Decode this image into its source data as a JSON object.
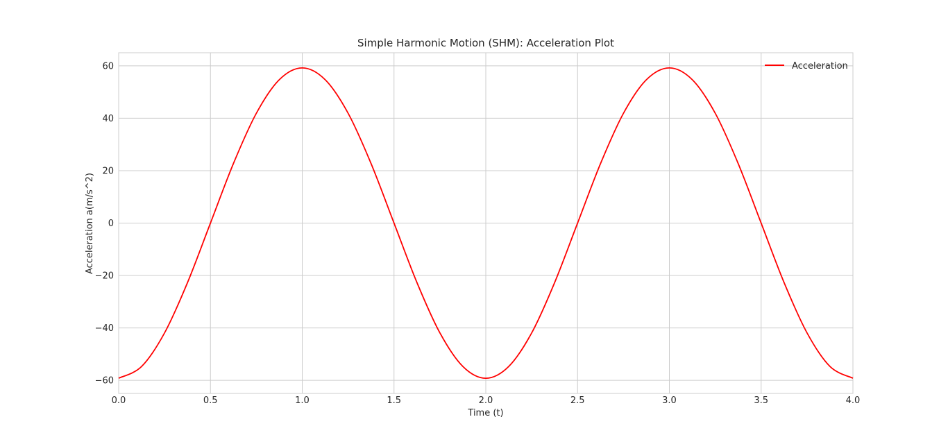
{
  "chart_data": {
    "type": "line",
    "title": "Simple Harmonic Motion (SHM): Acceleration Plot",
    "xlabel": "Time (t)",
    "ylabel": "Acceleration a(m/s^2)",
    "xlim": [
      0,
      4
    ],
    "ylim": [
      -65,
      65
    ],
    "x_ticks": [
      "0.0",
      "0.5",
      "1.0",
      "1.5",
      "2.0",
      "2.5",
      "3.0",
      "3.5",
      "4.0"
    ],
    "y_ticks": [
      "60",
      "40",
      "20",
      "0",
      "−20",
      "−40",
      "−60"
    ],
    "grid": true,
    "legend_position": "upper right",
    "series": [
      {
        "name": "Acceleration",
        "color": "#ff0000",
        "x": [
          0.0,
          0.125,
          0.25,
          0.375,
          0.5,
          0.625,
          0.75,
          0.875,
          1.0,
          1.125,
          1.25,
          1.375,
          1.5,
          1.625,
          1.75,
          1.875,
          2.0,
          2.125,
          2.25,
          2.375,
          2.5,
          2.625,
          2.75,
          2.875,
          3.0,
          3.125,
          3.25,
          3.375,
          3.5,
          3.625,
          3.75,
          3.875,
          4.0
        ],
        "values": [
          -59.2,
          -54.7,
          -41.9,
          -22.7,
          0.0,
          22.7,
          41.9,
          54.7,
          59.2,
          54.7,
          41.9,
          22.7,
          0.0,
          -22.7,
          -41.9,
          -54.7,
          -59.2,
          -54.7,
          -41.9,
          -22.7,
          0.0,
          22.7,
          41.9,
          54.7,
          59.2,
          54.7,
          41.9,
          22.7,
          0.0,
          -22.7,
          -41.9,
          -54.7,
          -59.2
        ]
      }
    ]
  }
}
